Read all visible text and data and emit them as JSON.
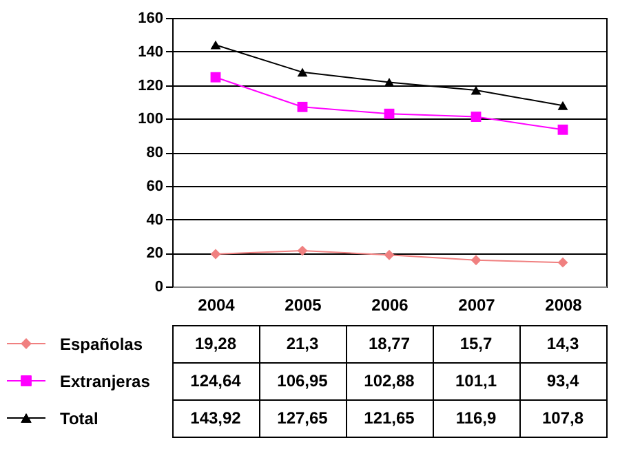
{
  "chart_data": {
    "type": "line",
    "categories": [
      "2004",
      "2005",
      "2006",
      "2007",
      "2008"
    ],
    "series": [
      {
        "name": "Españolas",
        "color": "#f08080",
        "marker": "diamond",
        "values": [
          19.28,
          21.3,
          18.77,
          15.7,
          14.3
        ],
        "value_labels": [
          "19,28",
          "21,3",
          "18,77",
          "15,7",
          "14,3"
        ]
      },
      {
        "name": "Extranjeras",
        "color": "#ff00ff",
        "marker": "square",
        "values": [
          124.64,
          106.95,
          102.88,
          101.1,
          93.4
        ],
        "value_labels": [
          "124,64",
          "106,95",
          "102,88",
          "101,1",
          "93,4"
        ]
      },
      {
        "name": "Total",
        "color": "#000000",
        "marker": "triangle",
        "values": [
          143.92,
          127.65,
          121.65,
          116.9,
          107.8
        ],
        "value_labels": [
          "143,92",
          "127,65",
          "121,65",
          "116,9",
          "107,8"
        ]
      }
    ],
    "ylim": [
      0,
      160
    ],
    "yticks": [
      0,
      20,
      40,
      60,
      80,
      100,
      120,
      140,
      160
    ],
    "grid": "y",
    "legend": "bottom"
  }
}
